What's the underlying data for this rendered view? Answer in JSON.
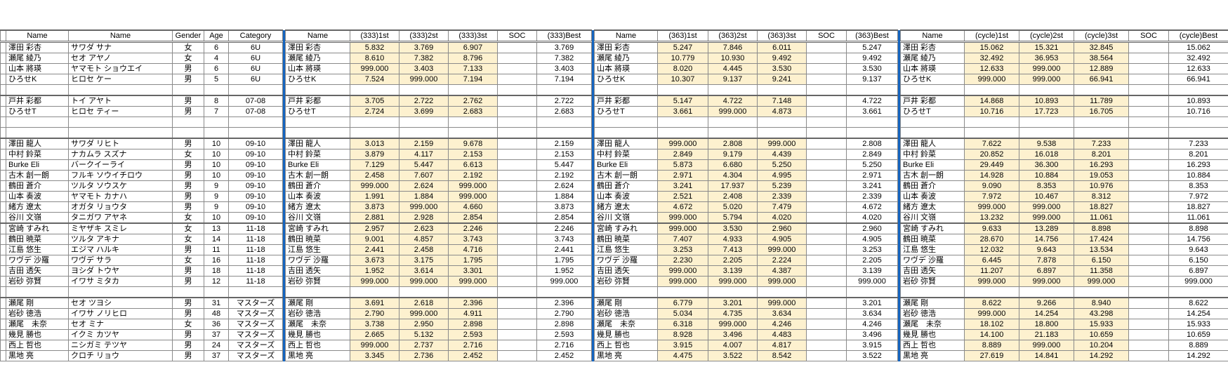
{
  "colors": {
    "separator": "#1565c0",
    "time_cell": "#fdf1cf"
  },
  "headers": {
    "left": [
      "Name",
      "Name",
      "Gender",
      "Age",
      "Category"
    ],
    "r333": [
      "Name",
      "(333)1st",
      "(333)2st",
      "(333)3st",
      "SOC",
      "(333)Best"
    ],
    "r363": [
      "Name",
      "(363)1st",
      "(363)2st",
      "(363)3st",
      "SOC",
      "(363)Best"
    ],
    "cycle": [
      "Name",
      "(cycle)1st",
      "(cycle)2st",
      "(cycle)3st",
      "SOC",
      "(cycle)Best"
    ]
  },
  "rows": [
    {
      "name": "澤田 彩杏",
      "kana": "サワダ サナ",
      "gender": "女",
      "age": "6",
      "category": "6U",
      "r333": [
        "5.832",
        "3.769",
        "6.907",
        "3.769"
      ],
      "r363": [
        "5.247",
        "7.846",
        "6.011",
        "5.247"
      ],
      "cycle": [
        "15.062",
        "15.321",
        "32.845",
        "15.062"
      ]
    },
    {
      "name": "瀬尾 綾乃",
      "kana": "セオ アヤノ",
      "gender": "女",
      "age": "4",
      "category": "6U",
      "r333": [
        "8.610",
        "7.382",
        "8.796",
        "7.382"
      ],
      "r363": [
        "10.779",
        "10.930",
        "9.492",
        "9.492"
      ],
      "cycle": [
        "32.492",
        "36.953",
        "38.564",
        "32.492"
      ]
    },
    {
      "name": "山本 將瑛",
      "kana": "ヤマモト ショウエイ",
      "gender": "男",
      "age": "6",
      "category": "6U",
      "r333": [
        "999.000",
        "3.403",
        "7.133",
        "3.403"
      ],
      "r363": [
        "8.020",
        "4.445",
        "3.530",
        "3.530"
      ],
      "cycle": [
        "12.633",
        "999.000",
        "12.889",
        "12.633"
      ]
    },
    {
      "name": "ひろせK",
      "kana": "ヒロセ ケー",
      "gender": "男",
      "age": "5",
      "category": "6U",
      "r333": [
        "7.524",
        "999.000",
        "7.194",
        "7.194"
      ],
      "r363": [
        "10.307",
        "9.137",
        "9.241",
        "9.137"
      ],
      "cycle": [
        "999.000",
        "999.000",
        "66.941",
        "66.941"
      ]
    },
    {
      "blank": true
    },
    {
      "name": "戸井 彩都",
      "kana": "トイ アヤト",
      "gender": "男",
      "age": "8",
      "category": "07-08",
      "r333": [
        "3.705",
        "2.722",
        "2.762",
        "2.722"
      ],
      "r363": [
        "5.147",
        "4.722",
        "7.148",
        "4.722"
      ],
      "cycle": [
        "14.868",
        "10.893",
        "11.789",
        "10.893"
      ]
    },
    {
      "name": "ひろせT",
      "kana": "ヒロセ ティー",
      "gender": "男",
      "age": "7",
      "category": "07-08",
      "r333": [
        "2.724",
        "3.699",
        "2.683",
        "2.683"
      ],
      "r363": [
        "3.661",
        "999.000",
        "4.873",
        "3.661"
      ],
      "cycle": [
        "10.716",
        "17.723",
        "16.705",
        "10.716"
      ]
    },
    {
      "blank": true
    },
    {
      "blank": true
    },
    {
      "name": "澤田 龍人",
      "kana": "サワダ リヒト",
      "gender": "男",
      "age": "10",
      "category": "09-10",
      "r333": [
        "3.013",
        "2.159",
        "9.678",
        "2.159"
      ],
      "r363": [
        "999.000",
        "2.808",
        "999.000",
        "2.808"
      ],
      "cycle": [
        "7.622",
        "9.538",
        "7.233",
        "7.233"
      ]
    },
    {
      "name": "中村 鈴菜",
      "kana": "ナカムラ スズナ",
      "gender": "女",
      "age": "10",
      "category": "09-10",
      "r333": [
        "3.879",
        "4.117",
        "2.153",
        "2.153"
      ],
      "r363": [
        "2.849",
        "9.179",
        "4.439",
        "2.849"
      ],
      "cycle": [
        "20.852",
        "16.018",
        "8.201",
        "8.201"
      ]
    },
    {
      "name": "Burke Eli",
      "kana": "バークイーライ",
      "gender": "男",
      "age": "10",
      "category": "09-10",
      "r333": [
        "7.129",
        "5.447",
        "6.613",
        "5.447"
      ],
      "r363": [
        "5.873",
        "6.680",
        "5.250",
        "5.250"
      ],
      "cycle": [
        "29.449",
        "36.300",
        "16.293",
        "16.293"
      ]
    },
    {
      "name": "古木 創一朗",
      "kana": "フルキ ソウイチロウ",
      "gender": "男",
      "age": "10",
      "category": "09-10",
      "r333": [
        "2.458",
        "7.607",
        "2.192",
        "2.192"
      ],
      "r363": [
        "2.971",
        "4.304",
        "4.995",
        "2.971"
      ],
      "cycle": [
        "14.928",
        "10.884",
        "19.053",
        "10.884"
      ]
    },
    {
      "name": "鶴田 蒼介",
      "kana": "ツルタ ソウスケ",
      "gender": "男",
      "age": "9",
      "category": "09-10",
      "r333": [
        "999.000",
        "2.624",
        "999.000",
        "2.624"
      ],
      "r363": [
        "3.241",
        "17.937",
        "5.239",
        "3.241"
      ],
      "cycle": [
        "9.090",
        "8.353",
        "10.976",
        "8.353"
      ]
    },
    {
      "name": "山本 奏波",
      "kana": "ヤマモト カナハ",
      "gender": "男",
      "age": "9",
      "category": "09-10",
      "r333": [
        "1.991",
        "1.884",
        "999.000",
        "1.884"
      ],
      "r363": [
        "2.521",
        "2.408",
        "2.339",
        "2.339"
      ],
      "cycle": [
        "7.972",
        "10.467",
        "8.312",
        "7.972"
      ]
    },
    {
      "name": "緒方 遼太",
      "kana": "オガタ リョウタ",
      "gender": "男",
      "age": "9",
      "category": "09-10",
      "r333": [
        "3.873",
        "999.000",
        "4.660",
        "3.873"
      ],
      "r363": [
        "4.672",
        "5.020",
        "7.479",
        "4.672"
      ],
      "cycle": [
        "999.000",
        "999.000",
        "18.827",
        "18.827"
      ]
    },
    {
      "name": "谷川 文嶺",
      "kana": "タニガワ アヤネ",
      "gender": "女",
      "age": "10",
      "category": "09-10",
      "r333": [
        "2.881",
        "2.928",
        "2.854",
        "2.854"
      ],
      "r363": [
        "999.000",
        "5.794",
        "4.020",
        "4.020"
      ],
      "cycle": [
        "13.232",
        "999.000",
        "11.061",
        "11.061"
      ]
    },
    {
      "name": "宮崎 すみれ",
      "kana": "ミヤザキ スミレ",
      "gender": "女",
      "age": "13",
      "category": "11-18",
      "r333": [
        "2.957",
        "2.623",
        "2.246",
        "2.246"
      ],
      "r363": [
        "999.000",
        "3.530",
        "2.960",
        "2.960"
      ],
      "cycle": [
        "9.633",
        "13.289",
        "8.898",
        "8.898"
      ]
    },
    {
      "name": "鶴田 暁菜",
      "kana": "ツルタ アキナ",
      "gender": "女",
      "age": "14",
      "category": "11-18",
      "r333": [
        "9.001",
        "4.857",
        "3.743",
        "3.743"
      ],
      "r363": [
        "7.407",
        "4.933",
        "4.905",
        "4.905"
      ],
      "cycle": [
        "28.670",
        "14.756",
        "17.424",
        "14.756"
      ]
    },
    {
      "name": "江島 悠生",
      "kana": "エジマ ハルキ",
      "gender": "男",
      "age": "11",
      "category": "11-18",
      "r333": [
        "2.441",
        "2.458",
        "4.716",
        "2.441"
      ],
      "r363": [
        "3.253",
        "7.413",
        "999.000",
        "3.253"
      ],
      "cycle": [
        "12.032",
        "9.643",
        "13.534",
        "9.643"
      ]
    },
    {
      "name": "ワヴデ 沙羅",
      "kana": "ワヴデ サラ",
      "gender": "女",
      "age": "16",
      "category": "11-18",
      "r333": [
        "3.673",
        "3.175",
        "1.795",
        "1.795"
      ],
      "r363": [
        "2.230",
        "2.205",
        "2.224",
        "2.205"
      ],
      "cycle": [
        "6.445",
        "7.878",
        "6.150",
        "6.150"
      ]
    },
    {
      "name": "吉田 透矢",
      "kana": "ヨシダ トウヤ",
      "gender": "男",
      "age": "18",
      "category": "11-18",
      "r333": [
        "1.952",
        "3.614",
        "3.301",
        "1.952"
      ],
      "r363": [
        "999.000",
        "3.139",
        "4.387",
        "3.139"
      ],
      "cycle": [
        "11.207",
        "6.897",
        "11.358",
        "6.897"
      ]
    },
    {
      "name": "岩砂 弥賢",
      "kana": "イワサ ミタカ",
      "gender": "男",
      "age": "12",
      "category": "11-18",
      "r333": [
        "999.000",
        "999.000",
        "999.000",
        "999.000"
      ],
      "r363": [
        "999.000",
        "999.000",
        "999.000",
        "999.000"
      ],
      "cycle": [
        "999.000",
        "999.000",
        "999.000",
        "999.000"
      ]
    },
    {
      "blank": true
    },
    {
      "name": "瀬尾 剛",
      "kana": "セオ ツヨシ",
      "gender": "男",
      "age": "31",
      "category": "マスターズ",
      "r333": [
        "3.691",
        "2.618",
        "2.396",
        "2.396"
      ],
      "r363": [
        "6.779",
        "3.201",
        "999.000",
        "3.201"
      ],
      "cycle": [
        "8.622",
        "9.266",
        "8.940",
        "8.622"
      ]
    },
    {
      "name": "岩砂 徳浩",
      "kana": "イワサ ノリヒロ",
      "gender": "男",
      "age": "48",
      "category": "マスターズ",
      "r333": [
        "2.790",
        "999.000",
        "4.911",
        "2.790"
      ],
      "r363": [
        "5.034",
        "4.735",
        "3.634",
        "3.634"
      ],
      "cycle": [
        "999.000",
        "14.254",
        "43.298",
        "14.254"
      ]
    },
    {
      "name": "瀬尾　未奈",
      "kana": "セオ ミナ",
      "gender": "女",
      "age": "36",
      "category": "マスターズ",
      "r333": [
        "3.738",
        "2.950",
        "2.898",
        "2.898"
      ],
      "r363": [
        "6.318",
        "999.000",
        "4.246",
        "4.246"
      ],
      "cycle": [
        "18.102",
        "18.800",
        "15.933",
        "15.933"
      ]
    },
    {
      "name": "幾見 勝也",
      "kana": "イクミ カツヤ",
      "gender": "男",
      "age": "37",
      "category": "マスターズ",
      "r333": [
        "2.665",
        "5.132",
        "2.593",
        "2.593"
      ],
      "r363": [
        "8.928",
        "3.496",
        "4.483",
        "3.496"
      ],
      "cycle": [
        "14.100",
        "21.183",
        "10.659",
        "10.659"
      ]
    },
    {
      "name": "西上 哲也",
      "kana": "ニシガミ テツヤ",
      "gender": "男",
      "age": "24",
      "category": "マスターズ",
      "r333": [
        "999.000",
        "2.737",
        "2.716",
        "2.716"
      ],
      "r363": [
        "3.915",
        "4.007",
        "4.817",
        "3.915"
      ],
      "cycle": [
        "8.889",
        "999.000",
        "10.204",
        "8.889"
      ]
    },
    {
      "name": "黒地 亮",
      "kana": "クロチ リョウ",
      "gender": "男",
      "age": "37",
      "category": "マスターズ",
      "r333": [
        "3.345",
        "2.736",
        "2.452",
        "2.452"
      ],
      "r363": [
        "4.475",
        "3.522",
        "8.542",
        "3.522"
      ],
      "cycle": [
        "27.619",
        "14.841",
        "14.292",
        "14.292"
      ]
    }
  ]
}
